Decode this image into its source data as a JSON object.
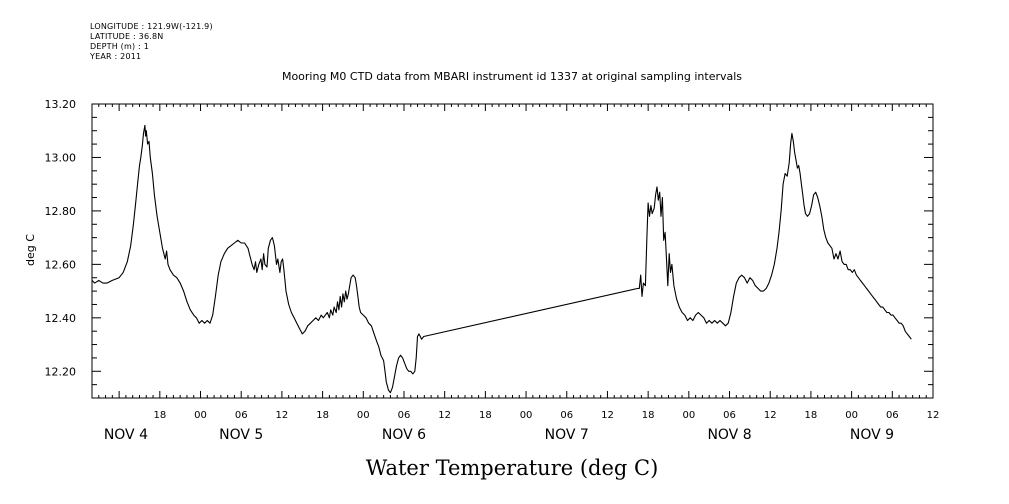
{
  "header": {
    "lines": [
      "LONGITUDE : 121.9W(-121.9)",
      "LATITUDE : 36.8N",
      "DEPTH (m) : 1",
      "YEAR : 2011"
    ]
  },
  "chart_data": {
    "type": "line",
    "title": "Mooring M0 CTD data from MBARI instrument id 1337 at original sampling intervals",
    "xlabel": "Water Temperature (deg C)",
    "ylabel": "deg C",
    "ylim": [
      12.1,
      13.2
    ],
    "xlim_hours": [
      8,
      132
    ],
    "grid": false,
    "y_ticks": [
      "12.20",
      "12.40",
      "12.60",
      "12.80",
      "13.00",
      "13.20"
    ],
    "hour_ticks": [
      {
        "h": 18,
        "label": "18"
      },
      {
        "h": 24,
        "label": "00"
      },
      {
        "h": 30,
        "label": "06"
      },
      {
        "h": 36,
        "label": "12"
      },
      {
        "h": 42,
        "label": "18"
      },
      {
        "h": 48,
        "label": "00"
      },
      {
        "h": 54,
        "label": "06"
      },
      {
        "h": 60,
        "label": "12"
      },
      {
        "h": 66,
        "label": "18"
      },
      {
        "h": 72,
        "label": "00"
      },
      {
        "h": 78,
        "label": "06"
      },
      {
        "h": 84,
        "label": "12"
      },
      {
        "h": 90,
        "label": "18"
      },
      {
        "h": 96,
        "label": "00"
      },
      {
        "h": 102,
        "label": "06"
      },
      {
        "h": 108,
        "label": "12"
      },
      {
        "h": 114,
        "label": "18"
      },
      {
        "h": 120,
        "label": "00"
      },
      {
        "h": 126,
        "label": "06"
      },
      {
        "h": 132,
        "label": "12"
      }
    ],
    "day_labels": [
      {
        "h": 13,
        "label": "NOV  4"
      },
      {
        "h": 30,
        "label": "NOV  5"
      },
      {
        "h": 54,
        "label": "NOV  6"
      },
      {
        "h": 78,
        "label": "NOV  7"
      },
      {
        "h": 102,
        "label": "NOV  8"
      },
      {
        "h": 123,
        "label": "NOV  9"
      }
    ],
    "series": [
      {
        "color": "#000000",
        "points": [
          [
            8.0,
            12.54
          ],
          [
            8.4,
            12.53
          ],
          [
            9.0,
            12.54
          ],
          [
            9.6,
            12.53
          ],
          [
            10.2,
            12.53
          ],
          [
            11.0,
            12.54
          ],
          [
            12.0,
            12.55
          ],
          [
            12.6,
            12.57
          ],
          [
            13.2,
            12.61
          ],
          [
            13.7,
            12.67
          ],
          [
            14.1,
            12.75
          ],
          [
            14.4,
            12.82
          ],
          [
            14.8,
            12.92
          ],
          [
            15.0,
            12.97
          ],
          [
            15.2,
            13.0
          ],
          [
            15.4,
            13.04
          ],
          [
            15.6,
            13.09
          ],
          [
            15.8,
            13.12
          ],
          [
            15.9,
            13.08
          ],
          [
            16.0,
            13.1
          ],
          [
            16.2,
            13.05
          ],
          [
            16.4,
            13.06
          ],
          [
            16.6,
            13.0
          ],
          [
            16.9,
            12.94
          ],
          [
            17.2,
            12.86
          ],
          [
            17.6,
            12.78
          ],
          [
            18.0,
            12.72
          ],
          [
            18.4,
            12.66
          ],
          [
            18.8,
            12.62
          ],
          [
            19.0,
            12.65
          ],
          [
            19.2,
            12.6
          ],
          [
            19.5,
            12.58
          ],
          [
            20.0,
            12.56
          ],
          [
            20.5,
            12.55
          ],
          [
            21.0,
            12.53
          ],
          [
            21.5,
            12.5
          ],
          [
            22.0,
            12.46
          ],
          [
            22.5,
            12.43
          ],
          [
            23.0,
            12.41
          ],
          [
            23.4,
            12.4
          ],
          [
            23.8,
            12.38
          ],
          [
            24.2,
            12.39
          ],
          [
            24.6,
            12.38
          ],
          [
            25.0,
            12.39
          ],
          [
            25.4,
            12.38
          ],
          [
            25.8,
            12.41
          ],
          [
            26.2,
            12.48
          ],
          [
            26.6,
            12.56
          ],
          [
            27.0,
            12.61
          ],
          [
            27.5,
            12.64
          ],
          [
            28.0,
            12.66
          ],
          [
            28.5,
            12.67
          ],
          [
            29.0,
            12.68
          ],
          [
            29.5,
            12.69
          ],
          [
            30.0,
            12.68
          ],
          [
            30.5,
            12.68
          ],
          [
            31.0,
            12.66
          ],
          [
            31.3,
            12.63
          ],
          [
            31.6,
            12.6
          ],
          [
            31.9,
            12.58
          ],
          [
            32.1,
            12.61
          ],
          [
            32.3,
            12.57
          ],
          [
            32.6,
            12.6
          ],
          [
            32.9,
            12.62
          ],
          [
            33.1,
            12.58
          ],
          [
            33.3,
            12.64
          ],
          [
            33.5,
            12.6
          ],
          [
            33.8,
            12.59
          ],
          [
            34.0,
            12.66
          ],
          [
            34.3,
            12.69
          ],
          [
            34.6,
            12.7
          ],
          [
            34.9,
            12.67
          ],
          [
            35.2,
            12.6
          ],
          [
            35.4,
            12.62
          ],
          [
            35.7,
            12.57
          ],
          [
            35.9,
            12.61
          ],
          [
            36.1,
            12.62
          ],
          [
            36.3,
            12.58
          ],
          [
            36.6,
            12.5
          ],
          [
            37.0,
            12.45
          ],
          [
            37.4,
            12.42
          ],
          [
            37.8,
            12.4
          ],
          [
            38.2,
            12.38
          ],
          [
            38.6,
            12.36
          ],
          [
            39.0,
            12.34
          ],
          [
            39.4,
            12.35
          ],
          [
            39.8,
            12.37
          ],
          [
            40.2,
            12.38
          ],
          [
            40.6,
            12.39
          ],
          [
            41.0,
            12.4
          ],
          [
            41.4,
            12.39
          ],
          [
            41.8,
            12.41
          ],
          [
            42.1,
            12.4
          ],
          [
            42.4,
            12.41
          ],
          [
            42.7,
            12.42
          ],
          [
            43.0,
            12.4
          ],
          [
            43.2,
            12.43
          ],
          [
            43.5,
            12.41
          ],
          [
            43.7,
            12.44
          ],
          [
            44.0,
            12.42
          ],
          [
            44.2,
            12.46
          ],
          [
            44.4,
            12.43
          ],
          [
            44.6,
            12.48
          ],
          [
            44.8,
            12.44
          ],
          [
            45.0,
            12.49
          ],
          [
            45.2,
            12.46
          ],
          [
            45.4,
            12.5
          ],
          [
            45.6,
            12.47
          ],
          [
            45.8,
            12.49
          ],
          [
            46.0,
            12.52
          ],
          [
            46.2,
            12.55
          ],
          [
            46.5,
            12.56
          ],
          [
            46.8,
            12.55
          ],
          [
            47.0,
            12.52
          ],
          [
            47.2,
            12.48
          ],
          [
            47.4,
            12.44
          ],
          [
            47.6,
            12.42
          ],
          [
            48.0,
            12.41
          ],
          [
            48.4,
            12.4
          ],
          [
            48.8,
            12.38
          ],
          [
            49.2,
            12.37
          ],
          [
            49.6,
            12.34
          ],
          [
            50.0,
            12.31
          ],
          [
            50.3,
            12.29
          ],
          [
            50.6,
            12.26
          ],
          [
            51.0,
            12.24
          ],
          [
            51.2,
            12.2
          ],
          [
            51.4,
            12.16
          ],
          [
            51.7,
            12.13
          ],
          [
            52.0,
            12.12
          ],
          [
            52.3,
            12.14
          ],
          [
            52.6,
            12.18
          ],
          [
            52.9,
            12.22
          ],
          [
            53.2,
            12.25
          ],
          [
            53.5,
            12.26
          ],
          [
            53.8,
            12.25
          ],
          [
            54.1,
            12.23
          ],
          [
            54.4,
            12.21
          ],
          [
            54.7,
            12.2
          ],
          [
            55.0,
            12.2
          ],
          [
            55.3,
            12.19
          ],
          [
            55.6,
            12.2
          ],
          [
            55.8,
            12.25
          ],
          [
            56.0,
            12.33
          ],
          [
            56.2,
            12.34
          ],
          [
            56.4,
            12.33
          ],
          [
            56.6,
            12.32
          ],
          [
            56.9,
            12.33
          ],
          [
            88.5,
            12.51
          ],
          [
            88.7,
            12.51
          ],
          [
            88.9,
            12.56
          ],
          [
            89.1,
            12.48
          ],
          [
            89.3,
            12.53
          ],
          [
            89.6,
            12.52
          ],
          [
            89.8,
            12.69
          ],
          [
            90.0,
            12.83
          ],
          [
            90.2,
            12.78
          ],
          [
            90.4,
            12.82
          ],
          [
            90.6,
            12.79
          ],
          [
            90.9,
            12.81
          ],
          [
            91.1,
            12.86
          ],
          [
            91.3,
            12.89
          ],
          [
            91.5,
            12.84
          ],
          [
            91.7,
            12.87
          ],
          [
            91.9,
            12.78
          ],
          [
            92.1,
            12.85
          ],
          [
            92.3,
            12.69
          ],
          [
            92.5,
            12.72
          ],
          [
            92.7,
            12.62
          ],
          [
            92.9,
            12.52
          ],
          [
            93.1,
            12.64
          ],
          [
            93.3,
            12.57
          ],
          [
            93.5,
            12.6
          ],
          [
            93.8,
            12.52
          ],
          [
            94.2,
            12.47
          ],
          [
            94.6,
            12.44
          ],
          [
            95.0,
            12.42
          ],
          [
            95.4,
            12.41
          ],
          [
            95.8,
            12.39
          ],
          [
            96.2,
            12.4
          ],
          [
            96.6,
            12.39
          ],
          [
            97.0,
            12.41
          ],
          [
            97.4,
            12.42
          ],
          [
            97.8,
            12.41
          ],
          [
            98.2,
            12.4
          ],
          [
            98.6,
            12.38
          ],
          [
            99.0,
            12.39
          ],
          [
            99.4,
            12.38
          ],
          [
            99.8,
            12.39
          ],
          [
            100.2,
            12.38
          ],
          [
            100.6,
            12.39
          ],
          [
            101.0,
            12.38
          ],
          [
            101.4,
            12.37
          ],
          [
            101.8,
            12.38
          ],
          [
            102.2,
            12.42
          ],
          [
            102.6,
            12.48
          ],
          [
            103.0,
            12.53
          ],
          [
            103.4,
            12.55
          ],
          [
            103.8,
            12.56
          ],
          [
            104.2,
            12.55
          ],
          [
            104.6,
            12.53
          ],
          [
            105.0,
            12.55
          ],
          [
            105.4,
            12.54
          ],
          [
            105.8,
            12.52
          ],
          [
            106.2,
            12.51
          ],
          [
            106.6,
            12.5
          ],
          [
            107.0,
            12.5
          ],
          [
            107.4,
            12.51
          ],
          [
            107.8,
            12.53
          ],
          [
            108.2,
            12.56
          ],
          [
            108.6,
            12.6
          ],
          [
            109.0,
            12.66
          ],
          [
            109.3,
            12.72
          ],
          [
            109.6,
            12.8
          ],
          [
            109.9,
            12.9
          ],
          [
            110.2,
            12.94
          ],
          [
            110.5,
            12.93
          ],
          [
            110.8,
            12.98
          ],
          [
            111.0,
            13.05
          ],
          [
            111.2,
            13.09
          ],
          [
            111.4,
            13.06
          ],
          [
            111.6,
            13.02
          ],
          [
            111.8,
            12.99
          ],
          [
            112.0,
            12.96
          ],
          [
            112.2,
            12.97
          ],
          [
            112.4,
            12.94
          ],
          [
            112.6,
            12.9
          ],
          [
            112.8,
            12.86
          ],
          [
            113.0,
            12.82
          ],
          [
            113.2,
            12.79
          ],
          [
            113.5,
            12.78
          ],
          [
            113.8,
            12.79
          ],
          [
            114.1,
            12.82
          ],
          [
            114.4,
            12.86
          ],
          [
            114.7,
            12.87
          ],
          [
            115.0,
            12.85
          ],
          [
            115.3,
            12.82
          ],
          [
            115.6,
            12.78
          ],
          [
            115.9,
            12.73
          ],
          [
            116.2,
            12.7
          ],
          [
            116.5,
            12.68
          ],
          [
            116.8,
            12.67
          ],
          [
            117.1,
            12.66
          ],
          [
            117.4,
            12.62
          ],
          [
            117.7,
            12.64
          ],
          [
            118.0,
            12.62
          ],
          [
            118.3,
            12.65
          ],
          [
            118.6,
            12.61
          ],
          [
            118.9,
            12.6
          ],
          [
            119.2,
            12.6
          ],
          [
            119.5,
            12.58
          ],
          [
            119.8,
            12.58
          ],
          [
            120.1,
            12.57
          ],
          [
            120.4,
            12.58
          ],
          [
            120.7,
            12.56
          ],
          [
            121.0,
            12.55
          ],
          [
            121.3,
            12.54
          ],
          [
            121.6,
            12.53
          ],
          [
            121.9,
            12.52
          ],
          [
            122.2,
            12.51
          ],
          [
            122.5,
            12.5
          ],
          [
            122.8,
            12.49
          ],
          [
            123.1,
            12.48
          ],
          [
            123.4,
            12.47
          ],
          [
            123.7,
            12.46
          ],
          [
            124.0,
            12.45
          ],
          [
            124.3,
            12.44
          ],
          [
            124.6,
            12.44
          ],
          [
            124.9,
            12.43
          ],
          [
            125.2,
            12.42
          ],
          [
            125.5,
            12.42
          ],
          [
            125.8,
            12.41
          ],
          [
            126.1,
            12.41
          ],
          [
            126.4,
            12.4
          ],
          [
            126.7,
            12.39
          ],
          [
            127.0,
            12.38
          ],
          [
            127.3,
            12.38
          ],
          [
            127.6,
            12.37
          ],
          [
            127.9,
            12.35
          ],
          [
            128.2,
            12.34
          ],
          [
            128.5,
            12.33
          ],
          [
            128.8,
            12.32
          ]
        ]
      }
    ]
  }
}
